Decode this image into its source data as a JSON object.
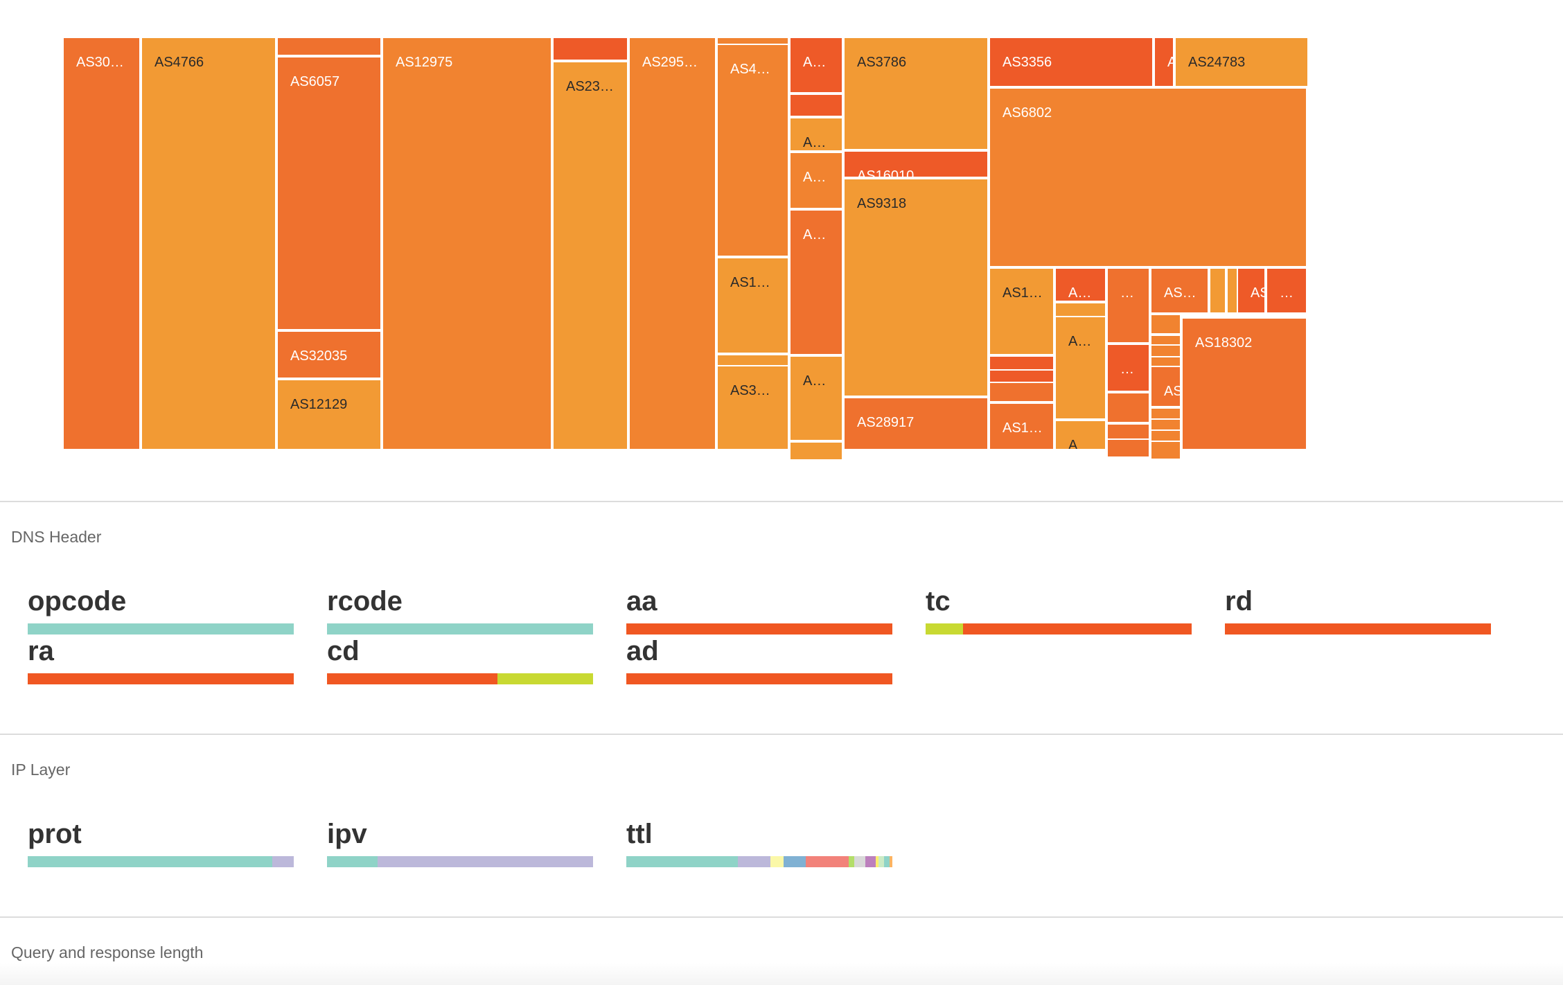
{
  "sections": {
    "dns": "DNS Header",
    "ip": "IP Layer",
    "query": "Query and response length"
  },
  "treemap": {
    "labels": [
      "AS30…",
      "AS4766",
      "AS6057",
      "AS32035",
      "AS12129",
      "AS12975",
      "AS23…",
      "AS295…",
      "AS4…",
      "AS1…",
      "AS3…",
      "A…",
      "A…",
      "A…",
      "A…",
      "A…",
      "AS3786",
      "AS16010",
      "AS9318",
      "AS28917",
      "AS3356",
      "A",
      "AS24783",
      "AS6802",
      "AS1…",
      "A…",
      "…",
      "AS…",
      "AS",
      "…",
      "A…",
      "…",
      "AS",
      "AS18302",
      "AS1…",
      "A"
    ],
    "colors": {
      "light": "#f29a34",
      "mid": "#f18330",
      "dark": "#ef712e",
      "red": "#ee5a28"
    }
  },
  "dns_fields": [
    {
      "name": "opcode",
      "segments": [
        {
          "value": 100,
          "color": "#8fd3c7"
        }
      ]
    },
    {
      "name": "rcode",
      "segments": [
        {
          "value": 100,
          "color": "#8fd3c7"
        }
      ]
    },
    {
      "name": "aa",
      "segments": [
        {
          "value": 100,
          "color": "#f05722"
        }
      ]
    },
    {
      "name": "tc",
      "segments": [
        {
          "value": 14,
          "color": "#c8d932"
        },
        {
          "value": 86,
          "color": "#f05722"
        }
      ]
    },
    {
      "name": "rd",
      "segments": [
        {
          "value": 100,
          "color": "#f05722"
        }
      ]
    },
    {
      "name": "ra",
      "segments": [
        {
          "value": 100,
          "color": "#f05722"
        }
      ]
    },
    {
      "name": "cd",
      "segments": [
        {
          "value": 64,
          "color": "#f05722"
        },
        {
          "value": 36,
          "color": "#c8d932"
        }
      ]
    },
    {
      "name": "ad",
      "segments": [
        {
          "value": 100,
          "color": "#f05722"
        }
      ]
    }
  ],
  "ip_fields": [
    {
      "name": "prot",
      "segments": [
        {
          "value": 92,
          "color": "#8fd3c7"
        },
        {
          "value": 8,
          "color": "#bcb8da"
        }
      ]
    },
    {
      "name": "ipv",
      "segments": [
        {
          "value": 19,
          "color": "#8fd3c7"
        },
        {
          "value": 81,
          "color": "#bcb8da"
        }
      ]
    },
    {
      "name": "ttl",
      "segments": [
        {
          "value": 41,
          "color": "#8fd3c7"
        },
        {
          "value": 12,
          "color": "#bcb8da"
        },
        {
          "value": 5,
          "color": "#fbf8a8"
        },
        {
          "value": 8,
          "color": "#80b1d3"
        },
        {
          "value": 16,
          "color": "#f2827a"
        },
        {
          "value": 2,
          "color": "#b3de69"
        },
        {
          "value": 4,
          "color": "#d9d9d9"
        },
        {
          "value": 4,
          "color": "#bc80bd"
        },
        {
          "value": 1,
          "color": "#ffed6f"
        },
        {
          "value": 2,
          "color": "#ccebc5"
        },
        {
          "value": 2,
          "color": "#8fd3c7"
        },
        {
          "value": 1,
          "color": "#fdb462"
        }
      ]
    }
  ]
}
